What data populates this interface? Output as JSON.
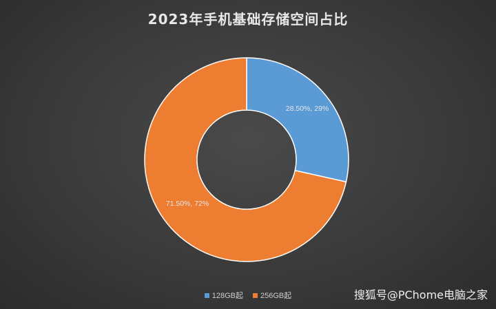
{
  "chart_data": {
    "type": "pie",
    "title": "2023年手机基础存储空间占比",
    "donut": true,
    "categories": [
      "128GB起",
      "256GB起"
    ],
    "values": [
      28.5,
      71.5
    ],
    "data_labels": [
      "28.50%, 29%",
      "71.50%, 72%"
    ],
    "colors": [
      "#5b9bd5",
      "#ed7d31"
    ],
    "legend_position": "bottom"
  },
  "watermark": "搜狐号@PChome电脑之家"
}
